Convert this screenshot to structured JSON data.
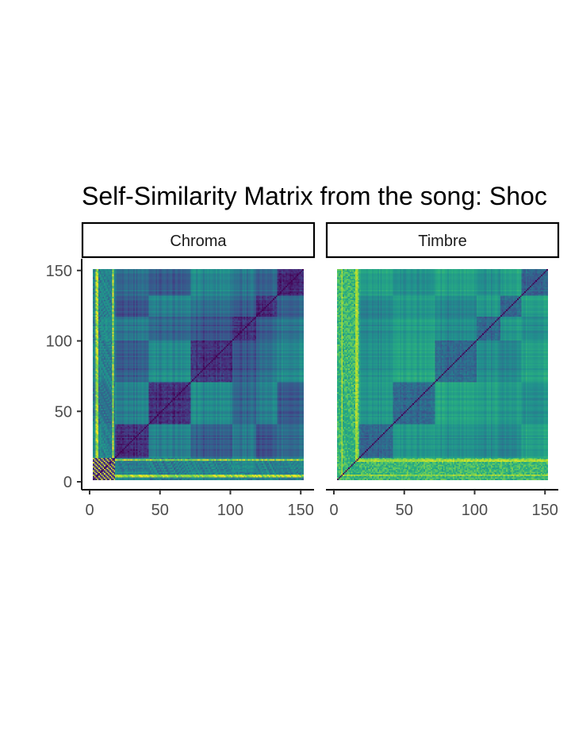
{
  "chart_data": {
    "type": "heatmap",
    "title": "Self-Similarity Matrix from the song: Shoc",
    "xlabel": "",
    "ylabel": "",
    "panels": [
      {
        "name": "Chroma",
        "colorscale": "viridis",
        "range": [
          0,
          151
        ]
      },
      {
        "name": "Timbre",
        "colorscale": "viridis",
        "range": [
          0,
          151
        ]
      }
    ],
    "xlim": [
      0,
      151
    ],
    "ylim": [
      0,
      151
    ],
    "xticks": [
      0,
      50,
      100,
      150
    ],
    "yticks": [
      0,
      50,
      100,
      150
    ],
    "xtick_labels": [
      "0",
      "50",
      "100",
      "150"
    ],
    "ytick_labels": [
      "0",
      "50",
      "100",
      "150"
    ],
    "segment_boundaries": [
      0,
      6,
      16,
      40,
      70,
      100,
      117,
      132,
      151
    ],
    "grid": false,
    "legend": "none",
    "colors": {
      "low": "#440154",
      "mid_low": "#3b528b",
      "mid": "#21908d",
      "mid_high": "#5dc962",
      "high": "#fde725",
      "strip_border": "#000000",
      "axis": "#333333"
    }
  }
}
